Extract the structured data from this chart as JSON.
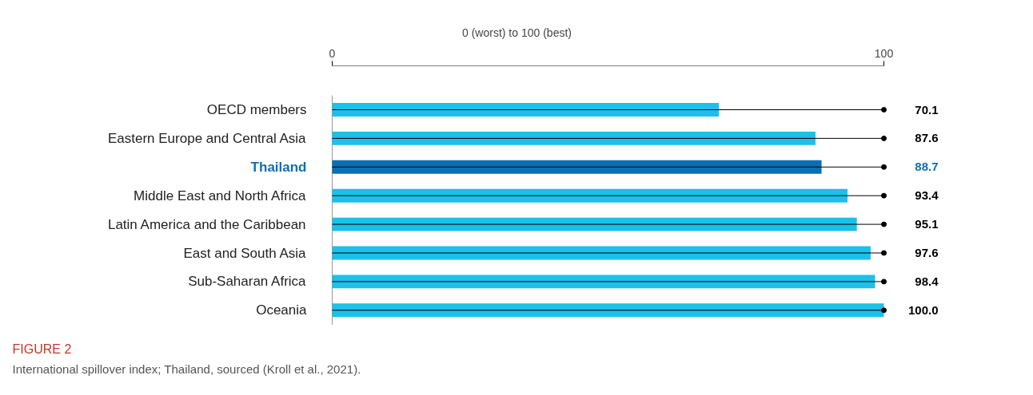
{
  "chart_data": {
    "type": "bar",
    "orientation": "horizontal",
    "xlabel": "0 (worst) to 100 (best)",
    "categories": [
      "OECD members",
      "Eastern Europe and Central Asia",
      "Thailand",
      "Middle East and North Africa",
      "Latin America and the Caribbean",
      "East and South Asia",
      "Sub-Saharan Africa",
      "Oceania"
    ],
    "series": [
      {
        "color": "#1cc0ea",
        "colors": [
          "#1cc0ea",
          "#1cc0ea",
          "#0b6fb3",
          "#1cc0ea",
          "#1cc0ea",
          "#1cc0ea",
          "#1cc0ea",
          "#1cc0ea"
        ],
        "values": [
          70.1,
          87.6,
          88.7,
          93.4,
          95.1,
          97.6,
          98.4,
          100.0
        ],
        "value_labels": [
          "70.1",
          "87.6",
          "88.7",
          "93.4",
          "95.1",
          "97.6",
          "98.4",
          "100.0"
        ]
      },
      {
        "type": "lollipop",
        "color": "#000000",
        "values": [
          100,
          100,
          100,
          100,
          100,
          100,
          100,
          100
        ]
      }
    ],
    "xlim": [
      0,
      100
    ],
    "xticks": [
      0,
      100
    ],
    "grid": false,
    "annotations": [
      "FIGURE 2",
      "International spillover index; Thailand, sourced (Kroll et al., 2021)."
    ]
  }
}
